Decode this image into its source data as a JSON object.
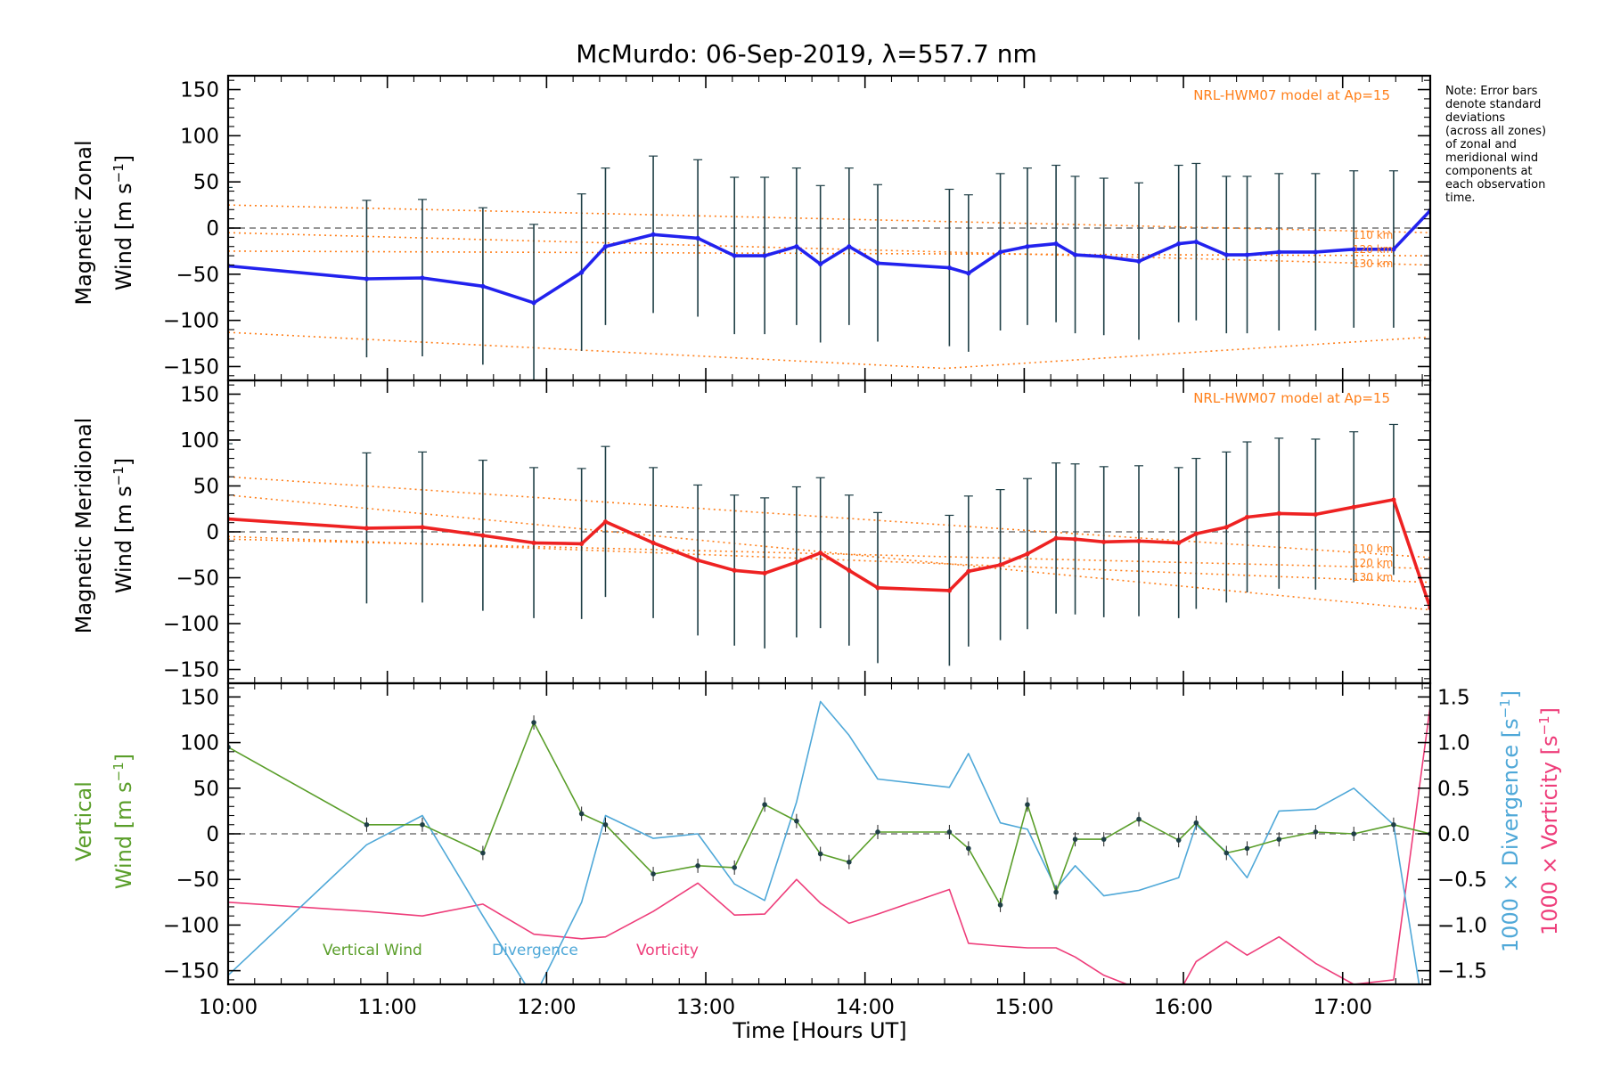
{
  "title": "McMurdo: 06-Sep-2019, λ=557.7 nm",
  "note": [
    "Note: Error bars",
    "denote standard",
    "deviations",
    "(across all zones)",
    "of zonal and",
    "meridional wind",
    "components at",
    "each observation",
    "time."
  ],
  "model_label": "NRL-HWM07 model at Ap=15",
  "model_heights": [
    "110 km",
    "120 km",
    "130 km"
  ],
  "xlabel": "Time [Hours UT]",
  "x_ticks": [
    "10:00",
    "11:00",
    "12:00",
    "13:00",
    "14:00",
    "15:00",
    "16:00",
    "17:00"
  ],
  "y_ticks": [
    "150",
    "100",
    "50",
    "0",
    "−50",
    "−100",
    "−150"
  ],
  "right_ticks": [
    "1.5",
    "1.0",
    "0.5",
    "0.0",
    "−0.5",
    "−1.0",
    "−1.5"
  ],
  "labels": {
    "zonal_1": "Magnetic Zonal",
    "zonal_2": "Wind [m s",
    "merid_1": "Magnetic Meridional",
    "merid_2": "Wind [m s",
    "vert_1": "Vertical",
    "vert_2": "Wind [m s",
    "div": "1000 × Divergence [s",
    "vor": "1000 × Vorticity [s",
    "sup": "−1",
    "close": "]"
  },
  "legend": {
    "vertical": "Vertical Wind",
    "divergence": "Divergence",
    "vorticity": "Vorticity"
  },
  "colors": {
    "zonal": "#2222ee",
    "meridional": "#ee2222",
    "vertical": "#5a9e2a",
    "divergence": "#4fa8d8",
    "vorticity": "#ee3d7a",
    "model": "#ff7f1a",
    "zero": "#777777"
  },
  "chart_data": [
    {
      "type": "line",
      "title": "Magnetic Zonal Wind",
      "xlabel": "Time [Hours UT]",
      "ylabel": "Magnetic Zonal Wind [m s-1]",
      "xlim": [
        10.0,
        17.55
      ],
      "ylim": [
        -165,
        165
      ],
      "series": [
        {
          "name": "Zonal wind",
          "x": [
            10.0,
            10.87,
            11.22,
            11.6,
            11.92,
            12.22,
            12.37,
            12.67,
            12.95,
            13.18,
            13.37,
            13.57,
            13.72,
            13.9,
            14.08,
            14.53,
            14.65,
            14.85,
            15.02,
            15.2,
            15.32,
            15.5,
            15.72,
            15.97,
            16.08,
            16.27,
            16.4,
            16.6,
            16.83,
            17.07,
            17.32,
            17.55
          ],
          "values": [
            -41,
            -55,
            -54,
            -63,
            -81,
            -48,
            -20,
            -7,
            -11,
            -30,
            -30,
            -20,
            -39,
            -20,
            -38,
            -43,
            -49,
            -26,
            -20,
            -17,
            -29,
            -31,
            -36,
            -17,
            -15,
            -29,
            -29,
            -26,
            -26,
            -23,
            -23,
            19
          ],
          "err": [
            85,
            85,
            85,
            85,
            85,
            85,
            85,
            85,
            85,
            85,
            85,
            85,
            85,
            85,
            85,
            85,
            85,
            85,
            85,
            85,
            85,
            85,
            85,
            85,
            85,
            85,
            85,
            85,
            85,
            85,
            85,
            0
          ]
        },
        {
          "name": "NRL-HWM07 zonal model",
          "curves": [
            {
              "label": "110 km",
              "x": [
                10.0,
                17.55
              ],
              "values": [
                25,
                -5
              ]
            },
            {
              "label": "120 km",
              "x": [
                10.0,
                17.55
              ],
              "values": [
                -25,
                -30
              ]
            },
            {
              "label": "130 km",
              "x": [
                10.0,
                17.55
              ],
              "values": [
                -5,
                -40
              ]
            },
            {
              "label": "",
              "x": [
                10.0,
                14.5,
                17.55
              ],
              "values": [
                -113,
                -152,
                -118
              ]
            }
          ]
        }
      ]
    },
    {
      "type": "line",
      "title": "Magnetic Meridional Wind",
      "xlabel": "Time [Hours UT]",
      "ylabel": "Magnetic Meridional Wind [m s-1]",
      "xlim": [
        10.0,
        17.55
      ],
      "ylim": [
        -165,
        165
      ],
      "series": [
        {
          "name": "Meridional wind",
          "x": [
            10.0,
            10.87,
            11.22,
            11.6,
            11.92,
            12.22,
            12.37,
            12.67,
            12.95,
            13.18,
            13.37,
            13.57,
            13.72,
            13.9,
            14.08,
            14.53,
            14.65,
            14.85,
            15.02,
            15.2,
            15.32,
            15.5,
            15.72,
            15.97,
            16.08,
            16.27,
            16.4,
            16.6,
            16.83,
            17.07,
            17.32,
            17.55
          ],
          "values": [
            14,
            4,
            5,
            -4,
            -12,
            -13,
            11,
            -12,
            -31,
            -42,
            -45,
            -33,
            -23,
            -42,
            -61,
            -64,
            -43,
            -36,
            -24,
            -7,
            -8,
            -11,
            -10,
            -12,
            -2,
            5,
            16,
            20,
            19,
            27,
            35,
            -83
          ],
          "err": [
            82,
            82,
            82,
            82,
            82,
            82,
            82,
            82,
            82,
            82,
            82,
            82,
            82,
            82,
            82,
            82,
            82,
            82,
            82,
            82,
            82,
            82,
            82,
            82,
            82,
            82,
            82,
            82,
            82,
            82,
            82,
            0
          ]
        },
        {
          "name": "NRL-HWM07 meridional model",
          "curves": [
            {
              "label": "110 km",
              "x": [
                10.0,
                17.55
              ],
              "values": [
                60,
                -28
              ]
            },
            {
              "label": "120 km",
              "x": [
                10.0,
                17.55
              ],
              "values": [
                -8,
                -40
              ]
            },
            {
              "label": "130 km",
              "x": [
                10.0,
                17.55
              ],
              "values": [
                40,
                -85
              ]
            },
            {
              "label": "",
              "x": [
                10.0,
                17.55
              ],
              "values": [
                -5,
                -55
              ]
            }
          ]
        }
      ]
    },
    {
      "type": "line",
      "title": "Vertical Wind, Divergence, Vorticity",
      "xlabel": "Time [Hours UT]",
      "ylabel": "Vertical Wind [m s-1]",
      "y2label": "1000 x Divergence [s-1], 1000 x Vorticity [s-1]",
      "xlim": [
        10.0,
        17.55
      ],
      "ylim": [
        -165,
        165
      ],
      "y2lim": [
        -1.65,
        1.65
      ],
      "series": [
        {
          "name": "Vertical Wind",
          "axis": "left",
          "x": [
            10.0,
            10.87,
            11.22,
            11.6,
            11.92,
            12.22,
            12.37,
            12.67,
            12.95,
            13.18,
            13.37,
            13.57,
            13.72,
            13.9,
            14.08,
            14.53,
            14.65,
            14.85,
            15.02,
            15.2,
            15.32,
            15.5,
            15.72,
            15.97,
            16.08,
            16.27,
            16.4,
            16.6,
            16.83,
            17.07,
            17.32,
            17.55
          ],
          "values": [
            95,
            10,
            10,
            -21,
            122,
            22,
            10,
            -44,
            -35,
            -37,
            32,
            14,
            -22,
            -31,
            2,
            2,
            -16,
            -78,
            32,
            -64,
            -6,
            -6,
            16,
            -7,
            12,
            -21,
            -16,
            -6,
            2,
            0,
            10,
            0
          ]
        },
        {
          "name": "Divergence",
          "axis": "right",
          "x": [
            10.0,
            10.87,
            11.22,
            11.6,
            11.92,
            12.22,
            12.37,
            12.67,
            12.95,
            13.18,
            13.37,
            13.57,
            13.72,
            13.9,
            14.08,
            14.53,
            14.65,
            14.85,
            15.02,
            15.2,
            15.32,
            15.5,
            15.72,
            15.97,
            16.08,
            16.27,
            16.4,
            16.6,
            16.83,
            17.07,
            17.32,
            17.48
          ],
          "values": [
            -1.55,
            -0.12,
            0.2,
            -0.9,
            -1.8,
            -0.75,
            0.2,
            -0.05,
            0.0,
            -0.55,
            -0.73,
            0.35,
            1.45,
            1.08,
            0.6,
            0.51,
            0.88,
            0.12,
            0.05,
            -0.6,
            -0.35,
            -0.68,
            -0.62,
            -0.48,
            0.1,
            -0.2,
            -0.48,
            0.25,
            0.27,
            0.5,
            0.1,
            -1.65
          ]
        },
        {
          "name": "Vorticity",
          "axis": "right",
          "x": [
            10.0,
            10.87,
            11.22,
            11.6,
            11.92,
            12.22,
            12.37,
            12.67,
            12.95,
            13.18,
            13.37,
            13.57,
            13.72,
            13.9,
            14.08,
            14.53,
            14.65,
            14.85,
            15.02,
            15.2,
            15.32,
            15.5,
            15.72,
            15.97,
            16.08,
            16.27,
            16.4,
            16.6,
            16.83,
            17.07,
            17.32,
            17.55
          ],
          "values": [
            -0.75,
            -0.85,
            -0.9,
            -0.77,
            -1.1,
            -1.15,
            -1.13,
            -0.85,
            -0.54,
            -0.89,
            -0.88,
            -0.5,
            -0.76,
            -0.98,
            -0.88,
            -0.61,
            -1.2,
            -1.23,
            -1.25,
            -1.25,
            -1.35,
            -1.55,
            -1.7,
            -1.75,
            -1.4,
            -1.18,
            -1.33,
            -1.13,
            -1.42,
            -1.65,
            -1.6,
            1.4
          ]
        }
      ]
    }
  ]
}
